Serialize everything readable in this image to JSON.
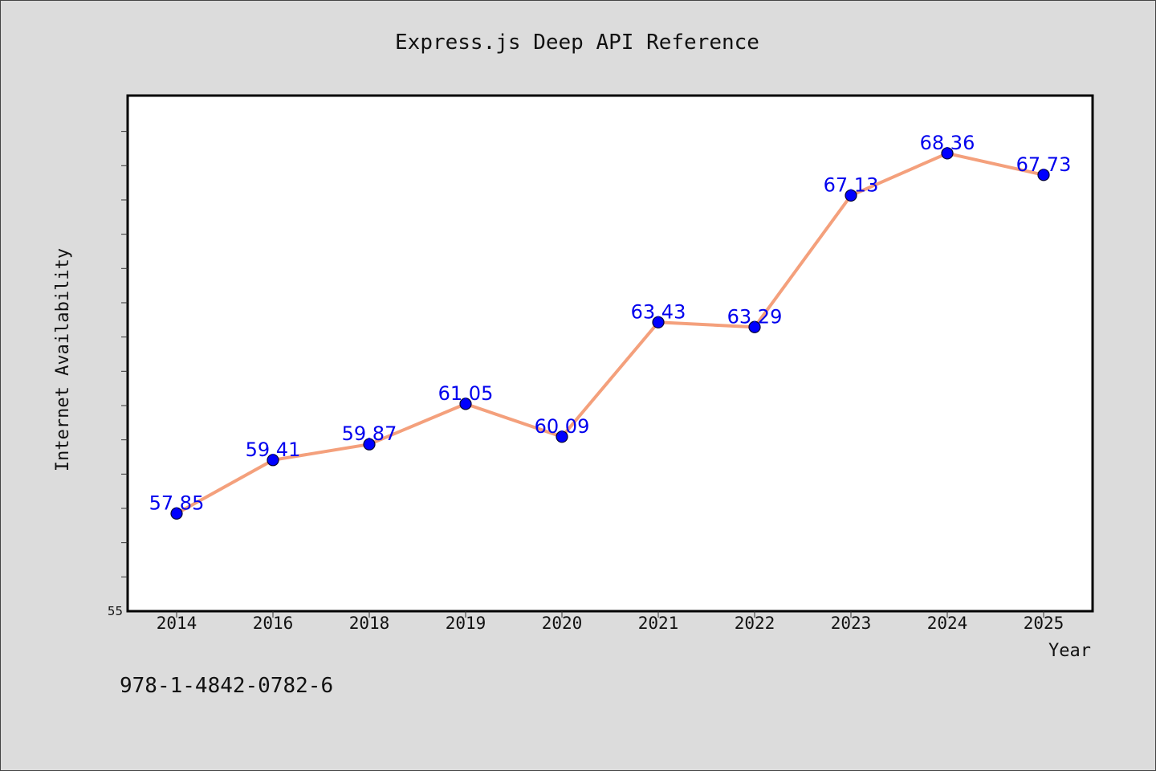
{
  "chart_data": {
    "type": "line",
    "title": "Express.js Deep API Reference",
    "xlabel": "Year",
    "ylabel": "Internet Availability",
    "categories": [
      "2014",
      "2016",
      "2018",
      "2019",
      "2020",
      "2021",
      "2022",
      "2023",
      "2024",
      "2025"
    ],
    "series": [
      {
        "values": [
          57.85,
          59.41,
          59.87,
          61.05,
          60.09,
          63.43,
          63.29,
          67.13,
          68.36,
          67.73
        ],
        "data_labels": [
          "57.85",
          "59.41",
          "59.87",
          "61.05",
          "60.09",
          "63.43",
          "63.29",
          "67.13",
          "68.36",
          "67.73"
        ],
        "line_color": "#f4a07c",
        "marker_color": "#0000ff"
      }
    ],
    "ylim": [
      55,
      70
    ],
    "y_ticks_labeled": [
      "55"
    ],
    "y_minor_tick_step": 1,
    "grid": false,
    "legend": "none"
  },
  "footer": {
    "isbn": "978-1-4842-0782-6"
  }
}
